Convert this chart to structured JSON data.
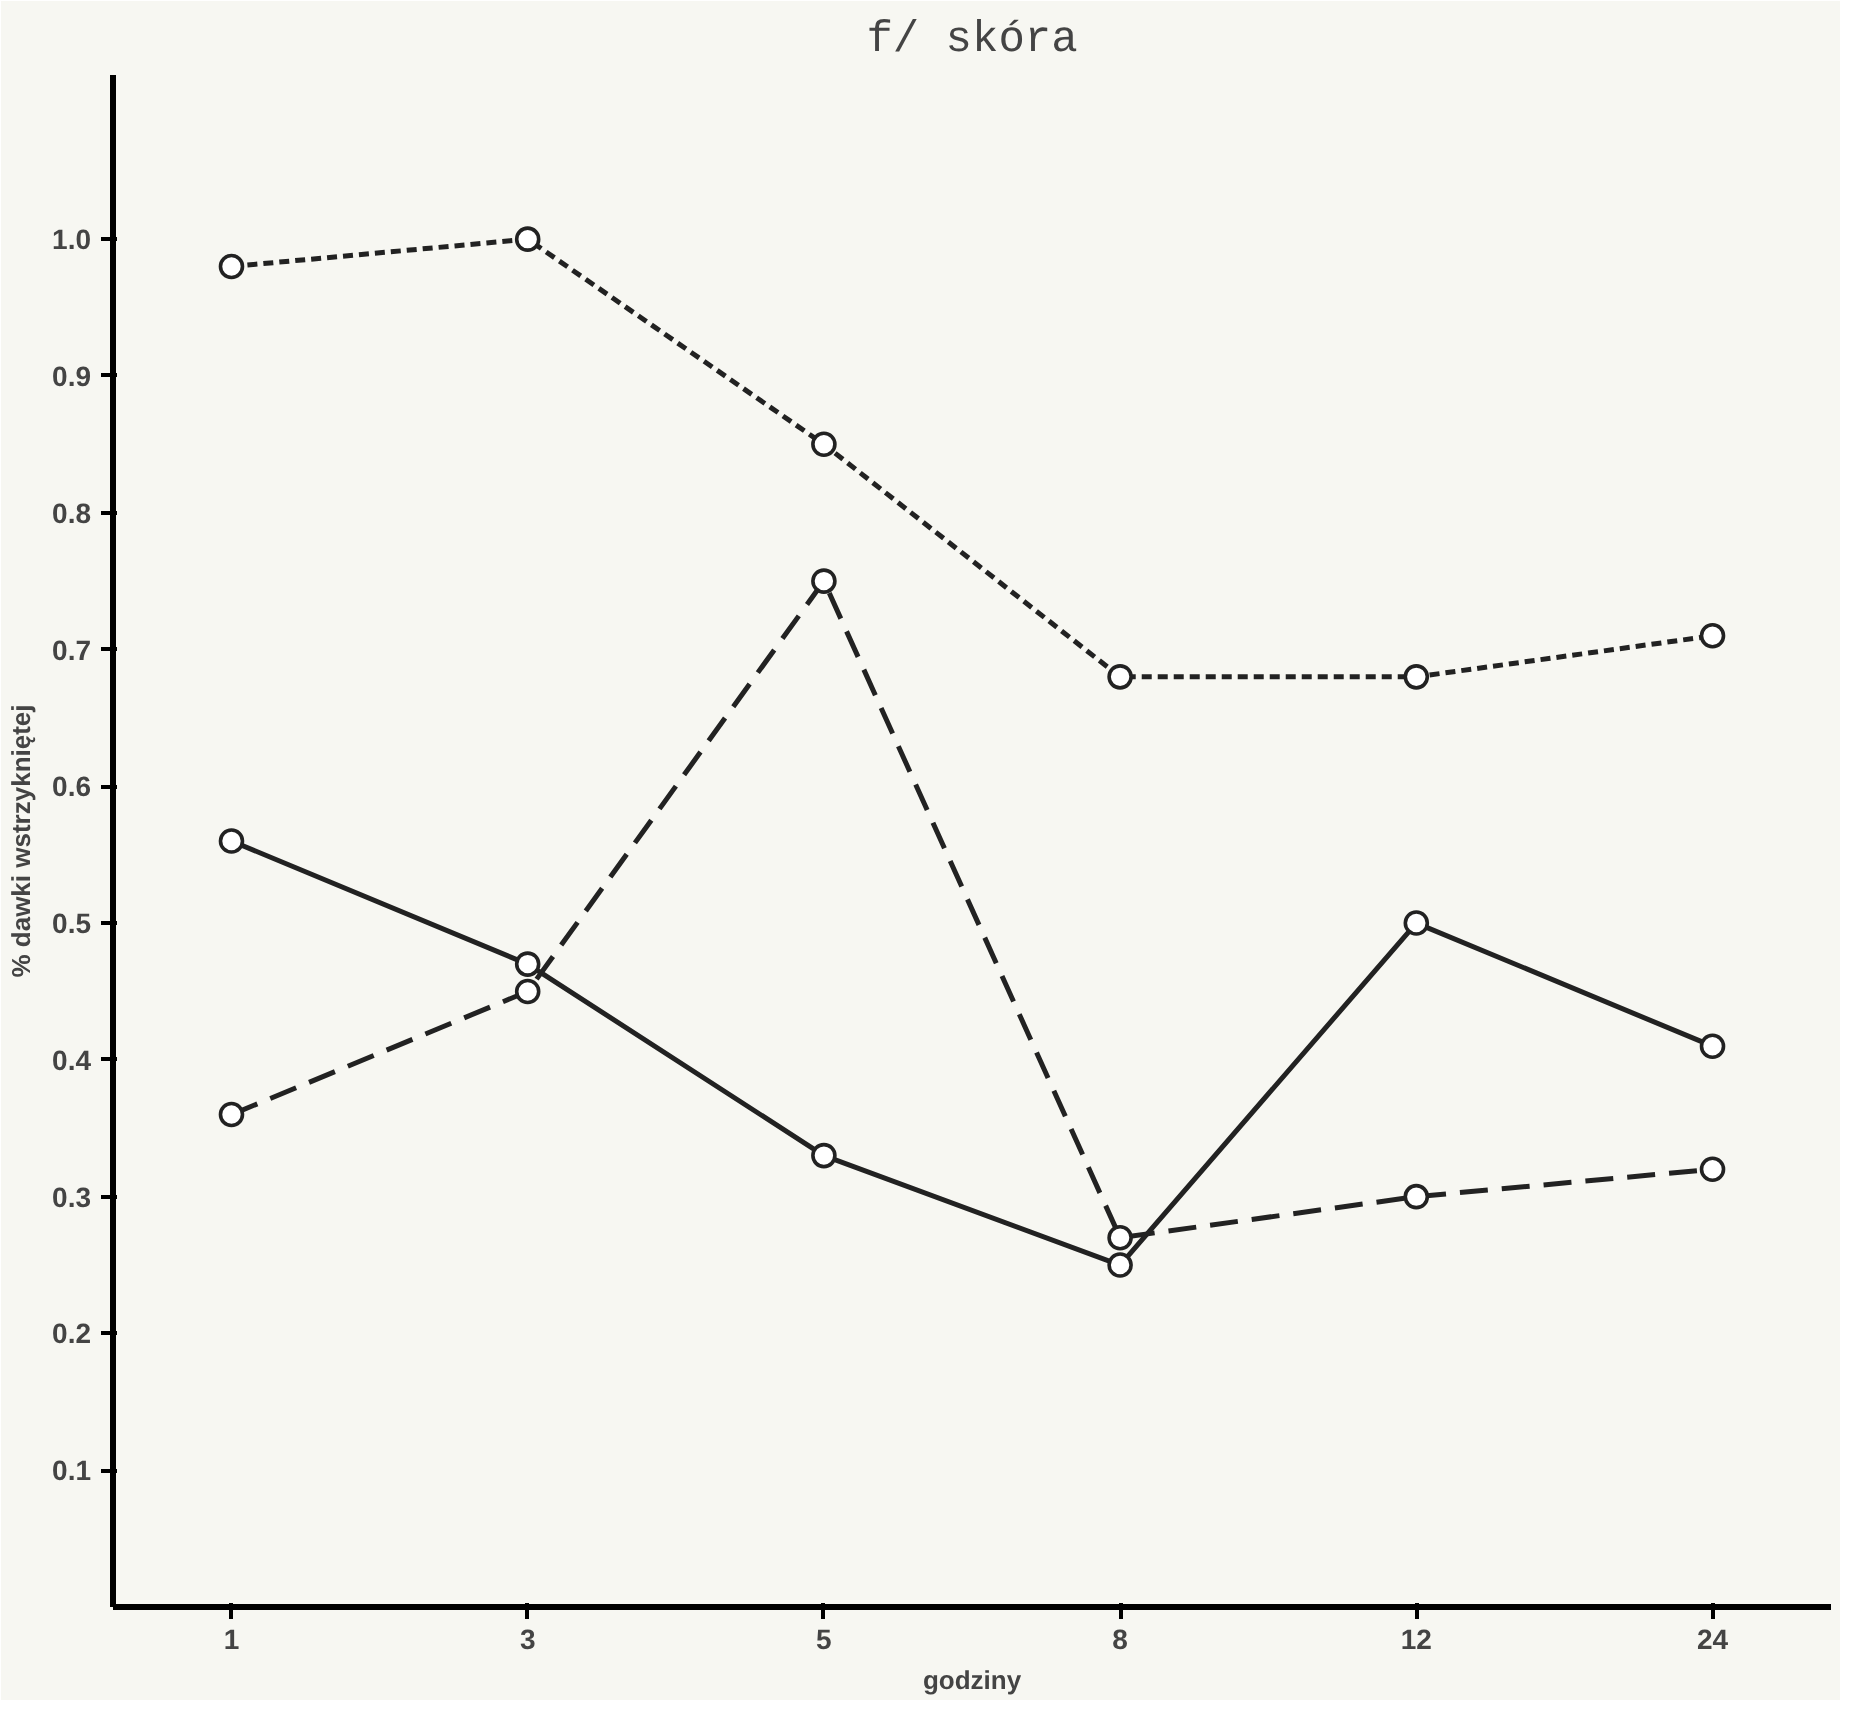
{
  "chart_data": {
    "type": "line",
    "title": "f/ skóra",
    "xlabel": "godziny",
    "ylabel": "% dawki wstrzykniętej",
    "categories": [
      "1",
      "3",
      "5",
      "8",
      "12",
      "24"
    ],
    "ylim": [
      0,
      1.12
    ],
    "yticks": [
      {
        "value": 0.1,
        "label": "0.1"
      },
      {
        "value": 0.2,
        "label": "0.2"
      },
      {
        "value": 0.3,
        "label": "0.3"
      },
      {
        "value": 0.4,
        "label": "0.4"
      },
      {
        "value": 0.5,
        "label": "0.5"
      },
      {
        "value": 0.6,
        "label": "0.6"
      },
      {
        "value": 0.7,
        "label": "0.7"
      },
      {
        "value": 0.8,
        "label": "0.8"
      },
      {
        "value": 0.9,
        "label": "0.9"
      },
      {
        "value": 1.0,
        "label": "1.0"
      }
    ],
    "marker": "circle",
    "series": [
      {
        "color": "#222222",
        "line_style": "dotted",
        "values": [
          0.98,
          1.0,
          0.85,
          0.68,
          0.68,
          0.71
        ]
      },
      {
        "color": "#222222",
        "line_style": "solid",
        "values": [
          0.56,
          0.47,
          0.33,
          0.25,
          0.5,
          0.41
        ]
      },
      {
        "color": "#222222",
        "line_style": "dashed",
        "values": [
          0.36,
          0.45,
          0.75,
          0.27,
          0.3,
          0.32
        ]
      }
    ]
  }
}
